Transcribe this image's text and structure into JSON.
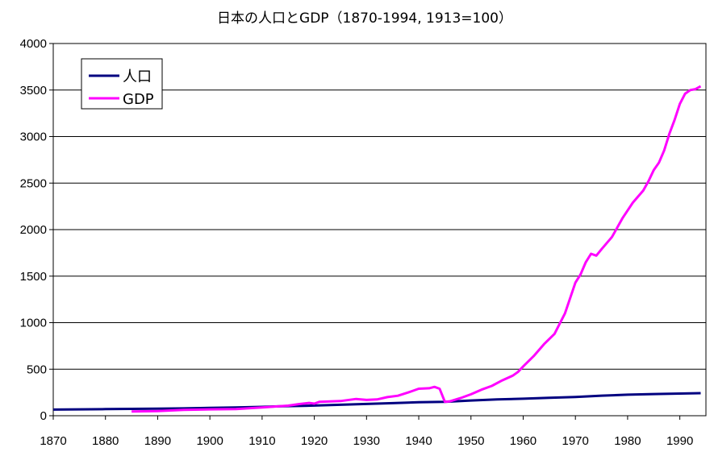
{
  "chart_data": {
    "type": "line",
    "title": "日本の人口とGDP（1870-1994, 1913=100）",
    "xlabel": "",
    "ylabel": "",
    "xlim": [
      1870,
      1995
    ],
    "ylim": [
      0,
      4000
    ],
    "x_ticks": [
      "1870",
      "1880",
      "1890",
      "1900",
      "1910",
      "1920",
      "1930",
      "1940",
      "1950",
      "1960",
      "1970",
      "1980",
      "1990"
    ],
    "y_ticks": [
      "0",
      "500",
      "1000",
      "1500",
      "2000",
      "2500",
      "3000",
      "3500",
      "4000"
    ],
    "grid": "horizontal",
    "legend_position": "top-left",
    "series": [
      {
        "name": "人口",
        "color": "#000080",
        "points": [
          [
            1870,
            66
          ],
          [
            1880,
            71
          ],
          [
            1890,
            75
          ],
          [
            1895,
            79
          ],
          [
            1900,
            84
          ],
          [
            1905,
            89
          ],
          [
            1910,
            95
          ],
          [
            1913,
            100
          ],
          [
            1920,
            109
          ],
          [
            1925,
            118
          ],
          [
            1930,
            126
          ],
          [
            1935,
            135
          ],
          [
            1940,
            145
          ],
          [
            1945,
            150
          ],
          [
            1950,
            164
          ],
          [
            1955,
            175
          ],
          [
            1960,
            183
          ],
          [
            1965,
            192
          ],
          [
            1970,
            202
          ],
          [
            1975,
            216
          ],
          [
            1980,
            226
          ],
          [
            1985,
            233
          ],
          [
            1990,
            238
          ],
          [
            1994,
            242
          ]
        ]
      },
      {
        "name": "GDP",
        "color": "#FF00FF",
        "points": [
          [
            1885,
            45
          ],
          [
            1890,
            50
          ],
          [
            1895,
            62
          ],
          [
            1900,
            68
          ],
          [
            1905,
            72
          ],
          [
            1910,
            88
          ],
          [
            1913,
            100
          ],
          [
            1915,
            108
          ],
          [
            1917,
            125
          ],
          [
            1919,
            138
          ],
          [
            1920,
            130
          ],
          [
            1921,
            150
          ],
          [
            1925,
            158
          ],
          [
            1928,
            180
          ],
          [
            1930,
            170
          ],
          [
            1932,
            175
          ],
          [
            1934,
            200
          ],
          [
            1936,
            215
          ],
          [
            1938,
            250
          ],
          [
            1940,
            290
          ],
          [
            1942,
            295
          ],
          [
            1943,
            310
          ],
          [
            1944,
            290
          ],
          [
            1945,
            150
          ],
          [
            1946,
            155
          ],
          [
            1948,
            190
          ],
          [
            1950,
            230
          ],
          [
            1952,
            280
          ],
          [
            1954,
            320
          ],
          [
            1956,
            380
          ],
          [
            1958,
            430
          ],
          [
            1959,
            470
          ],
          [
            1960,
            530
          ],
          [
            1962,
            640
          ],
          [
            1964,
            770
          ],
          [
            1966,
            880
          ],
          [
            1968,
            1100
          ],
          [
            1970,
            1430
          ],
          [
            1971,
            1520
          ],
          [
            1972,
            1650
          ],
          [
            1973,
            1740
          ],
          [
            1974,
            1720
          ],
          [
            1975,
            1790
          ],
          [
            1977,
            1920
          ],
          [
            1979,
            2120
          ],
          [
            1981,
            2290
          ],
          [
            1983,
            2420
          ],
          [
            1984,
            2520
          ],
          [
            1985,
            2640
          ],
          [
            1986,
            2720
          ],
          [
            1987,
            2850
          ],
          [
            1988,
            3030
          ],
          [
            1989,
            3180
          ],
          [
            1990,
            3350
          ],
          [
            1991,
            3460
          ],
          [
            1992,
            3500
          ],
          [
            1993,
            3510
          ],
          [
            1994,
            3540
          ]
        ]
      }
    ]
  }
}
